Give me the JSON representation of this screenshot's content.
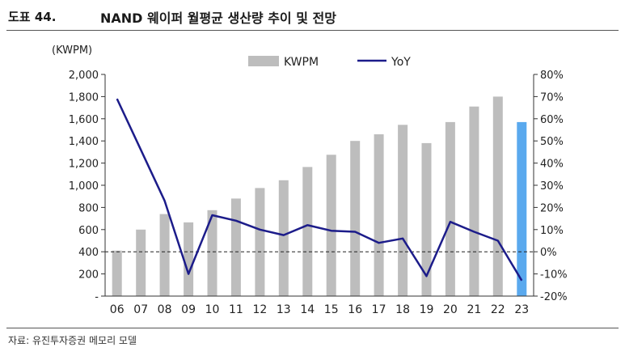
{
  "header": {
    "figure_number": "도표 44.",
    "title": "NAND 웨이퍼 월평균 생산량 추이 및 전망"
  },
  "source": "자료: 유진투자증권 메모리 모델",
  "colors": {
    "bar": "#bdbdbd",
    "bar_highlight": "#5aa9ee",
    "line": "#1c1c8a",
    "zero_line": "#222222"
  },
  "chart_data": {
    "type": "bar+line",
    "categories": [
      "06",
      "07",
      "08",
      "09",
      "10",
      "11",
      "12",
      "13",
      "14",
      "15",
      "16",
      "17",
      "18",
      "19",
      "20",
      "21",
      "22",
      "23"
    ],
    "series": [
      {
        "name": "KWPM",
        "type": "bar",
        "axis": "left",
        "values": [
          410,
          600,
          740,
          665,
          775,
          880,
          975,
          1045,
          1165,
          1275,
          1400,
          1460,
          1545,
          1380,
          1570,
          1710,
          1800,
          1570
        ]
      },
      {
        "name": "YoY",
        "type": "line",
        "axis": "right",
        "unit": "%",
        "values": [
          69,
          46,
          23,
          -10,
          16.5,
          14,
          10,
          7.5,
          12,
          9.5,
          9,
          4,
          6,
          -11,
          13.5,
          9,
          5,
          -13
        ]
      }
    ],
    "highlight_index": 17,
    "left_axis": {
      "label": "(KWPM)",
      "min": 0,
      "max": 2000,
      "step": 200,
      "tick_labels": [
        "-",
        "200",
        "400",
        "600",
        "800",
        "1,000",
        "1,200",
        "1,400",
        "1,600",
        "1,800",
        "2,000"
      ]
    },
    "right_axis": {
      "min": -20,
      "max": 80,
      "step": 10,
      "tick_labels": [
        "-20%",
        "-10%",
        "0%",
        "10%",
        "20%",
        "30%",
        "40%",
        "50%",
        "60%",
        "70%",
        "80%"
      ]
    },
    "zero_reference": "dashed line at YoY 0%",
    "legend": {
      "position": "top-center",
      "items": [
        "KWPM",
        "YoY"
      ]
    }
  }
}
